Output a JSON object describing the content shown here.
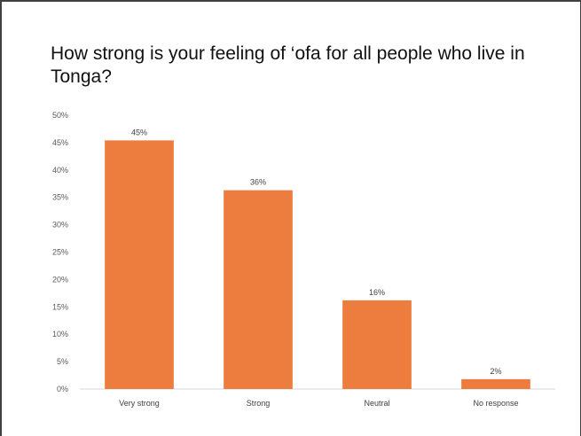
{
  "chart_data": {
    "type": "bar",
    "title": "How strong is your feeling of ‘ofa for all people who live in Tonga?",
    "categories": [
      "Very strong",
      "Strong",
      "Neutral",
      "No response"
    ],
    "values": [
      45.4,
      36.3,
      16.2,
      1.8
    ],
    "data_labels": [
      "45%",
      "36%",
      "16%",
      "2%"
    ],
    "yticks": [
      0,
      5,
      10,
      15,
      20,
      25,
      30,
      35,
      40,
      45,
      50
    ],
    "ytick_labels": [
      "0%",
      "5%",
      "10%",
      "15%",
      "20%",
      "25%",
      "30%",
      "35%",
      "40%",
      "45%",
      "50%"
    ],
    "ylim": [
      0,
      50
    ],
    "xlabel": "",
    "ylabel": "",
    "grid": false,
    "legend": "none",
    "bar_color": "#ED7D3F"
  }
}
